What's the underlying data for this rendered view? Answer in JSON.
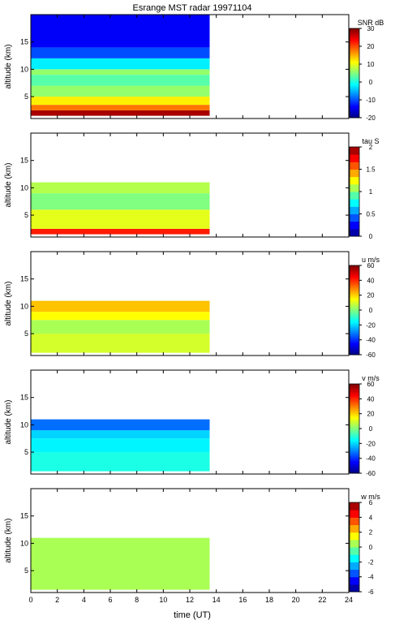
{
  "chart_data": {
    "type": "heatmap",
    "title": "Esrange MST radar 19971104",
    "xlabel": "time (UT)",
    "xlim": [
      0,
      24
    ],
    "x_ticks": [
      0,
      2,
      4,
      6,
      8,
      10,
      12,
      14,
      16,
      18,
      20,
      22,
      24
    ],
    "data_time_range": [
      0,
      13.5
    ],
    "panels": [
      {
        "id": "snr",
        "ylabel": "altitude (km)",
        "ylim": [
          1,
          20
        ],
        "y_ticks": [
          5,
          10,
          15
        ],
        "colorbar": {
          "label": "SNR dB",
          "range": [
            -20,
            30
          ],
          "ticks": [
            -20,
            -10,
            0,
            10,
            20,
            30
          ],
          "discrete": false
        },
        "rows": [
          {
            "alt": [
              1.5,
              2.5
            ],
            "value": 28
          },
          {
            "alt": [
              2.5,
              3.5
            ],
            "value": 18
          },
          {
            "alt": [
              3.5,
              5
            ],
            "value": 12
          },
          {
            "alt": [
              5,
              7
            ],
            "value": 6
          },
          {
            "alt": [
              7,
              9
            ],
            "value": 3
          },
          {
            "alt": [
              9,
              10
            ],
            "value": 6
          },
          {
            "alt": [
              10,
              12
            ],
            "value": -2
          },
          {
            "alt": [
              12,
              14
            ],
            "value": -10
          },
          {
            "alt": [
              14,
              20
            ],
            "value": -14
          }
        ]
      },
      {
        "id": "tau",
        "ylabel": "altitude (km)",
        "ylim": [
          1,
          20
        ],
        "y_ticks": [
          5,
          10,
          15
        ],
        "colorbar": {
          "label": "tau S",
          "range": [
            0,
            2
          ],
          "ticks": [
            0,
            0.5,
            1,
            1.5,
            2
          ],
          "discrete": true
        },
        "rows": [
          {
            "alt": [
              1.5,
              2.5
            ],
            "value": 1.7
          },
          {
            "alt": [
              2.5,
              6
            ],
            "value": 1.2
          },
          {
            "alt": [
              6,
              9
            ],
            "value": 1.0
          },
          {
            "alt": [
              9,
              11
            ],
            "value": 1.1
          }
        ]
      },
      {
        "id": "u",
        "ylabel": "altitude (km)",
        "ylim": [
          1,
          20
        ],
        "y_ticks": [
          5,
          10,
          15
        ],
        "colorbar": {
          "label": "u m/s",
          "range": [
            -60,
            60
          ],
          "ticks": [
            -60,
            -40,
            -20,
            0,
            20,
            40,
            60
          ],
          "discrete": false
        },
        "rows": [
          {
            "alt": [
              1.5,
              5
            ],
            "value": 10
          },
          {
            "alt": [
              5,
              7.5
            ],
            "value": 5
          },
          {
            "alt": [
              7.5,
              9
            ],
            "value": 15
          },
          {
            "alt": [
              9,
              11
            ],
            "value": 22
          }
        ]
      },
      {
        "id": "v",
        "ylabel": "altitude (km)",
        "ylim": [
          1,
          20
        ],
        "y_ticks": [
          5,
          10,
          15
        ],
        "colorbar": {
          "label": "v m/s",
          "range": [
            -60,
            60
          ],
          "ticks": [
            -60,
            -40,
            -20,
            0,
            20,
            40,
            60
          ],
          "discrete": false
        },
        "rows": [
          {
            "alt": [
              1.5,
              5
            ],
            "value": -12
          },
          {
            "alt": [
              5,
              7.5
            ],
            "value": -16
          },
          {
            "alt": [
              7.5,
              9
            ],
            "value": -20
          },
          {
            "alt": [
              9,
              11
            ],
            "value": -32
          }
        ]
      },
      {
        "id": "w",
        "ylabel": "altitude (km)",
        "ylim": [
          1,
          20
        ],
        "y_ticks": [
          5,
          10,
          15
        ],
        "colorbar": {
          "label": "w m/s",
          "range": [
            -6,
            6
          ],
          "ticks": [
            -6,
            -4,
            -2,
            0,
            2,
            4,
            6
          ],
          "discrete": true
        },
        "rows": [
          {
            "alt": [
              1.5,
              11
            ],
            "value": 0.5
          }
        ]
      }
    ]
  }
}
